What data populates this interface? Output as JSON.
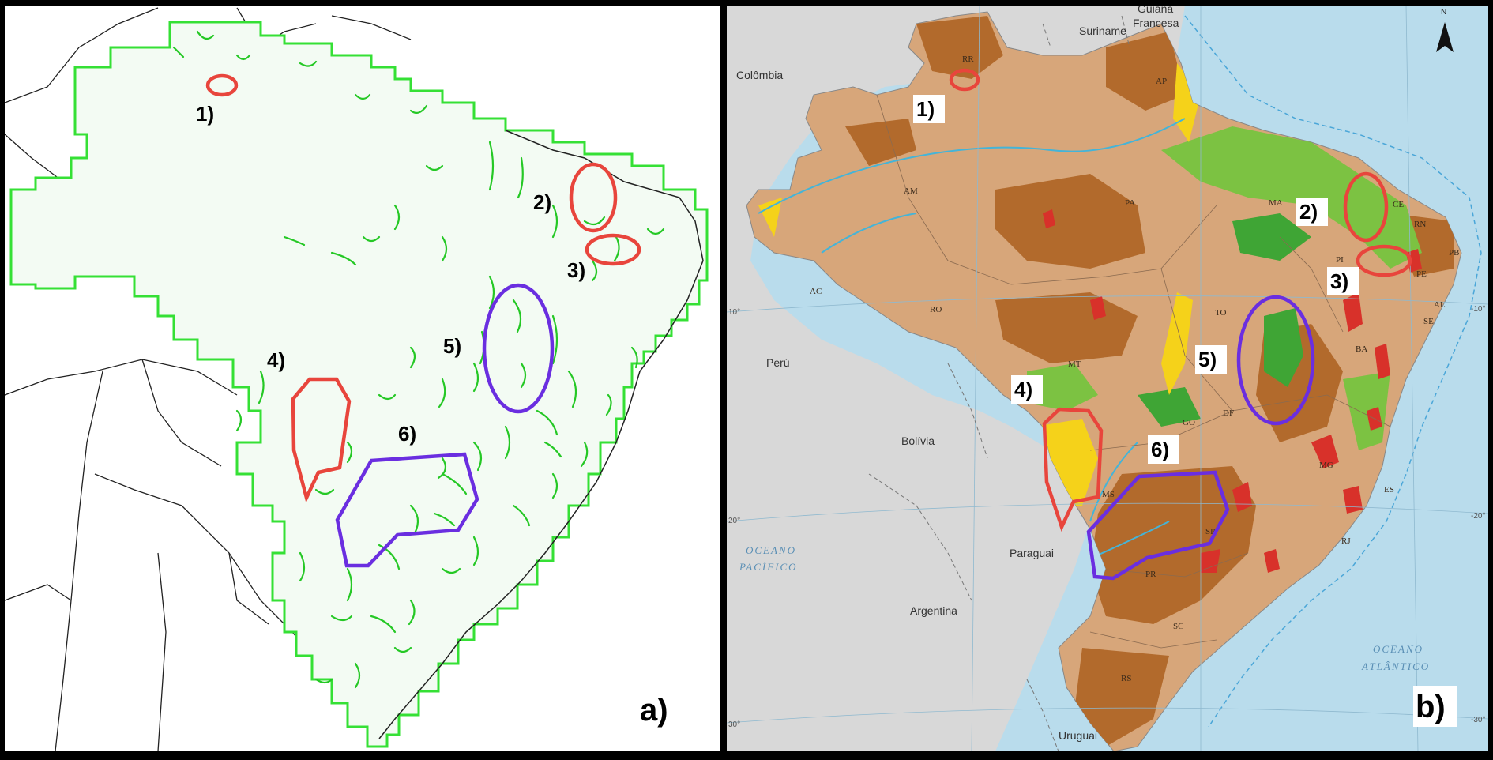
{
  "panels": {
    "a": {
      "label": "a)"
    },
    "b": {
      "label": "b)"
    }
  },
  "markers": [
    {
      "id": "1",
      "label": "1)",
      "shape": "ellipse",
      "color": "#e8453c"
    },
    {
      "id": "2",
      "label": "2)",
      "shape": "ellipse",
      "color": "#e8453c"
    },
    {
      "id": "3",
      "label": "3)",
      "shape": "ellipse",
      "color": "#e8453c"
    },
    {
      "id": "4",
      "label": "4)",
      "shape": "polygon",
      "color": "#e8453c"
    },
    {
      "id": "5",
      "label": "5)",
      "shape": "ellipse",
      "color": "#6a2ee0"
    },
    {
      "id": "6",
      "label": "6)",
      "shape": "polygon",
      "color": "#6a2ee0"
    }
  ],
  "countries": {
    "suriname": "Suriname",
    "guiana_francesa_1": "Guiana",
    "guiana_francesa_2": "Francesa",
    "colombia": "Colômbia",
    "peru": "Perú",
    "bolivia": "Bolívia",
    "paraguai": "Paraguai",
    "argentina": "Argentina",
    "uruguai": "Uruguai"
  },
  "oceans": {
    "pacifico_1": "OCEANO",
    "pacifico_2": "PACÍFICO",
    "atlantico_1": "OCEANO",
    "atlantico_2": "ATLÂNTICO"
  },
  "states": {
    "rr": "RR",
    "ap": "AP",
    "am": "AM",
    "pa": "PA",
    "ma": "MA",
    "ce": "CE",
    "rn": "RN",
    "pb": "PB",
    "pi": "PI",
    "pe": "PE",
    "al": "AL",
    "se": "SE",
    "ac": "AC",
    "ro": "RO",
    "to": "TO",
    "ba": "BA",
    "mt": "MT",
    "go": "GO",
    "df": "DF",
    "mg": "MG",
    "es": "ES",
    "ms": "MS",
    "sp": "SP",
    "rj": "RJ",
    "pr": "PR",
    "sc": "SC",
    "rs": "RS"
  },
  "degrees": {
    "lat10_left": "10°",
    "lat10_right": "-10°",
    "lat20_left": "20°",
    "lat20_right": "-20°",
    "lat30_left": "30°",
    "lat30_right": "-30°"
  },
  "north_arrow": {
    "label": "N",
    "icon": "north-arrow-icon"
  },
  "colors": {
    "frame": "#000000",
    "panel_a_bg": "#ffffff",
    "panel_a_land": "#f3fbf3",
    "panel_a_outline": "#35e035",
    "panel_a_patch": "#25c825",
    "panel_b_sea": "#b9dcec",
    "panel_b_land_other": "#d8d8d8",
    "brazil_base": "#d7a67a",
    "dark_brown": "#b26a2c",
    "green": "#7cc242",
    "dark_green": "#3fa535",
    "yellow": "#f5d21a",
    "red": "#d8312a",
    "blue_river": "#44b4d8"
  }
}
